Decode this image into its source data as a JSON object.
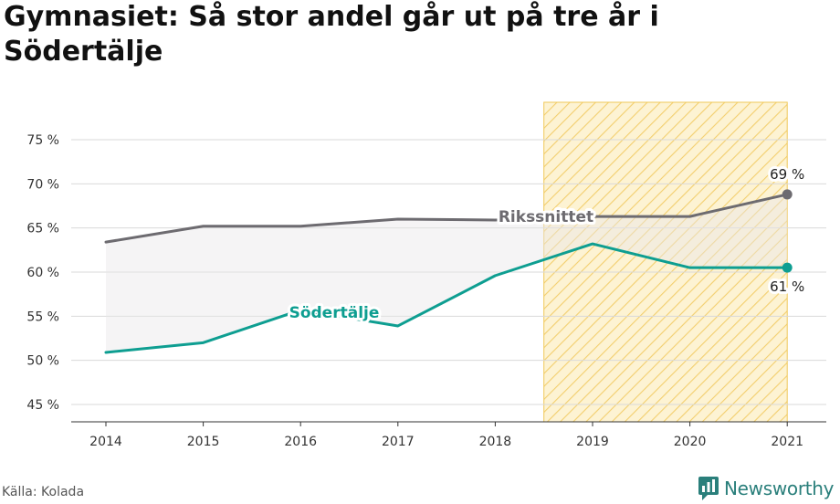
{
  "chart_data": {
    "type": "line",
    "title": "Gymnasiet: Så stor andel går ut på tre år i Södertälje",
    "x": [
      "2014",
      "2015",
      "2016",
      "2017",
      "2018",
      "2019",
      "2020",
      "2021"
    ],
    "ylim": [
      43,
      78
    ],
    "yticks": [
      45,
      50,
      55,
      60,
      65,
      70,
      75
    ],
    "y_tick_suffix": " %",
    "grid": true,
    "highlight_range": [
      "2019",
      "2021"
    ],
    "series": [
      {
        "name": "Rikssnittet",
        "color": "#6d6b70",
        "values": [
          63.4,
          65.2,
          65.2,
          66.0,
          65.9,
          66.3,
          66.3,
          68.8
        ],
        "end_label": "69 %"
      },
      {
        "name": "Södertälje",
        "color": "#0e9e91",
        "values": [
          50.9,
          52.0,
          55.7,
          53.9,
          59.6,
          63.2,
          60.5,
          60.5
        ],
        "end_label": "61 %"
      }
    ]
  },
  "footer": {
    "source": "Källa: Kolada",
    "brand": "Newsworthy",
    "brand_icon": "newsworthy-logo-icon",
    "brand_color": "#2a7f7b"
  }
}
